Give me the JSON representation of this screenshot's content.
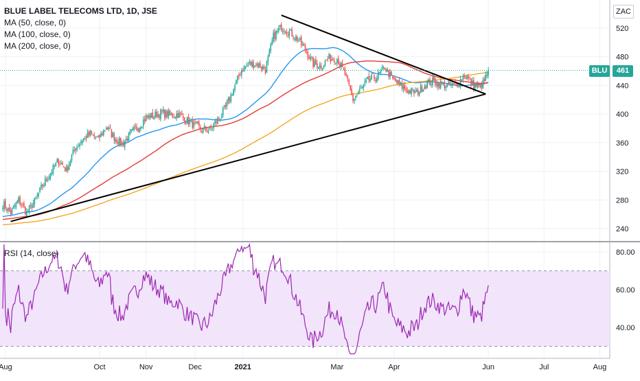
{
  "legend": {
    "title": "BLUE LABEL TELECOMS LTD, 1D, JSE",
    "ma50": "MA (50, close, 0)",
    "ma100": "MA (100, close, 0)",
    "ma200": "MA (200, close, 0)",
    "rsi": "RSI (14, close)"
  },
  "currency": "ZAC",
  "last_price": {
    "symbol": "BLU",
    "value": "461"
  },
  "colors": {
    "up": "#26a69a",
    "down": "#ef5350",
    "ma50": "#2196f3",
    "ma100": "#e53935",
    "ma200": "#f5a623",
    "rsi": "#9c27b0",
    "rsi_band": "#f1e4fb",
    "trendline": "#000000"
  },
  "chart_data": [
    {
      "type": "candlestick",
      "title": "BLUE LABEL TELECOMS LTD, 1D, JSE",
      "x_ticks": [
        "Aug",
        "Oct",
        "Nov",
        "Dec",
        "2021",
        "Mar",
        "Apr",
        "Jun",
        "Jul",
        "Aug"
      ],
      "y_ticks": [
        "240",
        "280",
        "320",
        "360",
        "400",
        "440",
        "480",
        "520"
      ],
      "ylim": [
        225,
        545
      ],
      "grid": true,
      "price_anchors": [
        [
          0,
          275
        ],
        [
          6,
          262
        ],
        [
          12,
          280
        ],
        [
          18,
          262
        ],
        [
          24,
          278
        ],
        [
          30,
          300
        ],
        [
          36,
          318
        ],
        [
          42,
          335
        ],
        [
          48,
          322
        ],
        [
          54,
          350
        ],
        [
          60,
          365
        ],
        [
          66,
          372
        ],
        [
          72,
          365
        ],
        [
          78,
          382
        ],
        [
          84,
          368
        ],
        [
          90,
          358
        ],
        [
          96,
          372
        ],
        [
          102,
          382
        ],
        [
          108,
          395
        ],
        [
          114,
          398
        ],
        [
          120,
          402
        ],
        [
          126,
          398
        ],
        [
          132,
          400
        ],
        [
          138,
          392
        ],
        [
          144,
          385
        ],
        [
          150,
          378
        ],
        [
          156,
          378
        ],
        [
          162,
          392
        ],
        [
          168,
          408
        ],
        [
          174,
          435
        ],
        [
          180,
          462
        ],
        [
          186,
          470
        ],
        [
          192,
          470
        ],
        [
          198,
          462
        ],
        [
          204,
          508
        ],
        [
          210,
          522
        ],
        [
          216,
          515
        ],
        [
          222,
          505
        ],
        [
          228,
          490
        ],
        [
          234,
          470
        ],
        [
          240,
          468
        ],
        [
          246,
          478
        ],
        [
          252,
          478
        ],
        [
          258,
          455
        ],
        [
          264,
          420
        ],
        [
          270,
          435
        ],
        [
          276,
          448
        ],
        [
          282,
          452
        ],
        [
          288,
          465
        ],
        [
          294,
          448
        ],
        [
          300,
          440
        ],
        [
          306,
          432
        ],
        [
          312,
          430
        ],
        [
          318,
          440
        ],
        [
          324,
          446
        ],
        [
          330,
          442
        ],
        [
          336,
          440
        ],
        [
          342,
          440
        ],
        [
          348,
          455
        ],
        [
          354,
          442
        ],
        [
          360,
          437
        ],
        [
          363,
          446
        ],
        [
          366,
          461
        ]
      ],
      "series": [
        {
          "name": "MA (50, close, 0)"
        },
        {
          "name": "MA (100, close, 0)"
        },
        {
          "name": "MA (200, close, 0)"
        }
      ],
      "trendlines": [
        {
          "from": [
            6,
            250
          ],
          "to": [
            364,
            428
          ]
        },
        {
          "from": [
            210,
            538
          ],
          "to": [
            364,
            428
          ]
        }
      ]
    },
    {
      "type": "line",
      "title": "RSI (14, close)",
      "y_ticks": [
        "40.00",
        "60.00",
        "80.00"
      ],
      "ylim": [
        25,
        85
      ],
      "band": [
        30,
        70
      ],
      "series": [
        {
          "name": "RSI (14, close)"
        }
      ]
    }
  ]
}
